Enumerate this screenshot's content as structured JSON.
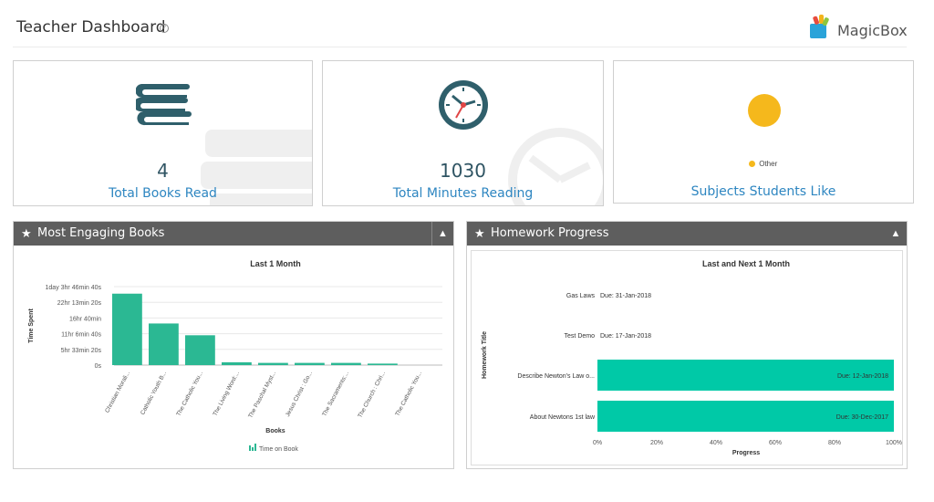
{
  "header": {
    "title": "Teacher Dashboard",
    "help_symbol": "?",
    "brand": "MagicBox"
  },
  "stats": {
    "books": {
      "value": "4",
      "label": "Total Books Read",
      "icon": "books-icon"
    },
    "minutes": {
      "value": "1030",
      "label": "Total Minutes Reading",
      "icon": "clock-icon"
    },
    "subjects": {
      "label": "Subjects Students Like",
      "legend": "Other",
      "color": "#f5b81c"
    }
  },
  "engaging": {
    "title": "Most Engaging Books",
    "collapse_symbol": "▲"
  },
  "homework": {
    "title": "Homework Progress",
    "collapse_symbol": "▲"
  },
  "colors": {
    "bar": "#2bb893",
    "hbar": "#00c9a7",
    "panel_header": "#5e5e5e",
    "accent": "#2e86c1"
  },
  "chart_data": [
    {
      "type": "bar",
      "title": "Last 1 Month",
      "xlabel": "Books",
      "ylabel": "Time Spent",
      "legend": "Time on Book",
      "yticks": [
        "0s",
        "5hr 33min 20s",
        "11hr 6min 40s",
        "16hr 40min",
        "22hr 13min 20s",
        "1day 3hr 46min 40s"
      ],
      "ylim": [
        0,
        100000
      ],
      "categories": [
        "Christian Morali...",
        "Catholic Youth B...",
        "The Catholic You...",
        "The Living Word:...",
        "The Paschal Myst...",
        "Jesus Christ : Go...",
        "The Sacraments:...",
        "The Church : Chri...",
        "The Catholic You..."
      ],
      "values": [
        91000,
        53000,
        38000,
        3600,
        2800,
        2800,
        2800,
        1900,
        0
      ]
    },
    {
      "type": "bar",
      "orientation": "horizontal",
      "title": "Last and Next 1 Month",
      "xlabel": "Progress",
      "ylabel": "Homework Title",
      "xlim": [
        0,
        100
      ],
      "xticks": [
        "0%",
        "20%",
        "40%",
        "60%",
        "80%",
        "100%"
      ],
      "categories": [
        "Gas Laws",
        "Test Demo",
        "Describe Newton's Law o...",
        "About Newtons 1st law"
      ],
      "values": [
        0,
        0,
        100,
        100
      ],
      "due": [
        "Due: 31-Jan-2018",
        "Due: 17-Jan-2018",
        "Due: 12-Jan-2018",
        "Due: 30-Dec-2017"
      ]
    }
  ]
}
